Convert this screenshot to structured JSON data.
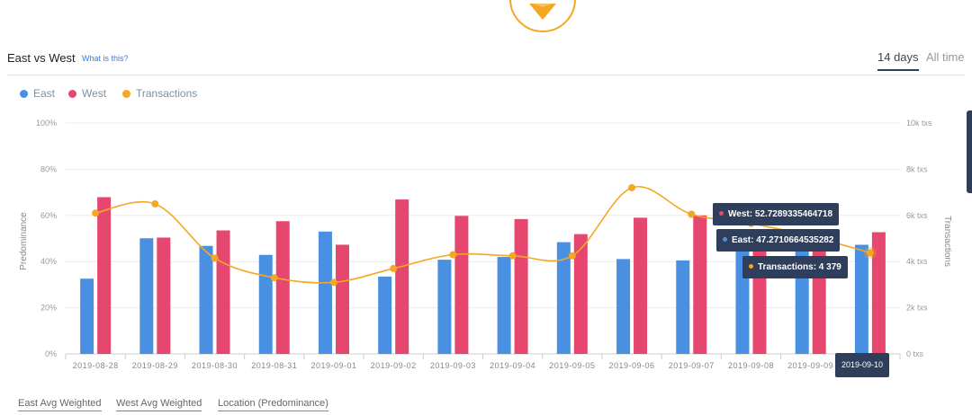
{
  "header": {
    "title": "East vs West",
    "help_link": "What is this?",
    "range_active": "14 days",
    "range_all": "All time"
  },
  "legend": [
    {
      "label": "East",
      "color": "#4a90e2"
    },
    {
      "label": "West",
      "color": "#e5476f"
    },
    {
      "label": "Transactions",
      "color": "#f5a623"
    }
  ],
  "tooltip": {
    "west": "West: 52.7289335464718",
    "east": "East: 47.2710664535282",
    "transactions": "Transactions: 4 379",
    "date": "2019-09-10"
  },
  "bottom_tabs": [
    {
      "label": "East Avg Weighted",
      "color": "#5a9ab0"
    },
    {
      "label": "West Avg Weighted",
      "color": "#e5476f"
    },
    {
      "label": "Location (Predominance)",
      "color": "#888888"
    }
  ],
  "chart_data": {
    "type": "bar",
    "categories": [
      "2019-08-28",
      "2019-08-29",
      "2019-08-30",
      "2019-08-31",
      "2019-09-01",
      "2019-09-02",
      "2019-09-03",
      "2019-09-04",
      "2019-09-05",
      "2019-09-06",
      "2019-09-07",
      "2019-09-08",
      "2019-09-09",
      "2019-09-10"
    ],
    "series": [
      {
        "name": "East",
        "axis": "left",
        "color": "#4a90e2",
        "values": [
          32.6,
          50.1,
          46.8,
          42.9,
          53.0,
          33.5,
          40.8,
          42.0,
          48.4,
          41.1,
          40.5,
          47.8,
          46.2,
          47.2710664535282
        ]
      },
      {
        "name": "West",
        "axis": "left",
        "color": "#e5476f",
        "values": [
          67.9,
          50.4,
          53.5,
          57.5,
          47.3,
          66.9,
          59.8,
          58.4,
          51.9,
          59.0,
          60.0,
          52.2,
          53.8,
          52.7289335464718
        ]
      },
      {
        "name": "Transactions",
        "axis": "right",
        "type": "line",
        "color": "#f5a623",
        "values": [
          6100,
          6500,
          4150,
          3300,
          3100,
          3700,
          4300,
          4250,
          4250,
          7200,
          6050,
          5650,
          5100,
          4379
        ]
      }
    ],
    "ylabel": "Predominance",
    "ylabel_right": "Transactions",
    "ylim": [
      0,
      100
    ],
    "ylim_right": [
      0,
      10000
    ],
    "yticks": [
      "0%",
      "20%",
      "40%",
      "60%",
      "80%",
      "100%"
    ],
    "yticks_right": [
      "0 txs",
      "2k txs",
      "4k txs",
      "6k txs",
      "8k txs",
      "10k txs"
    ],
    "grid": true,
    "legend_position": "top-left"
  }
}
